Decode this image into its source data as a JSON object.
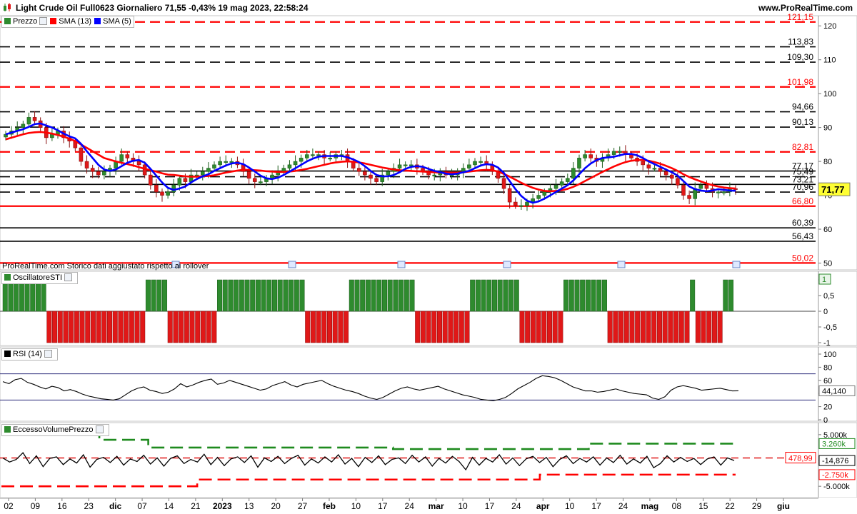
{
  "window": {
    "title": "Light Crude Oil Full0623 Giornaliero 71,55 -0,43% 19 mag 2023, 22:58:24",
    "site": "www.ProRealTime.com"
  },
  "footnote": "ProRealTime.com  Storico dati aggiustato rispetto ai rollover",
  "colors": {
    "bull": "#2e8b2e",
    "bear": "#e01818",
    "sma13": "#ff0000",
    "sma5": "#0000ff",
    "accent_label": "#ffff33"
  },
  "panels": {
    "price": {
      "legend": [
        {
          "label": "Prezzo",
          "icon": "candle-icon",
          "color": "#2e8b2e"
        },
        {
          "label": "SMA (13)",
          "color": "#ff0000"
        },
        {
          "label": "SMA (5)",
          "color": "#0000ff"
        }
      ],
      "current_price": "71,77"
    },
    "sti": {
      "legend": "OscillatoreSTI",
      "value_badge": "1"
    },
    "rsi": {
      "legend": "RSI (14)",
      "value": "44,140"
    },
    "volume": {
      "legend": "EccessoVolumePrezzo",
      "value_label": "478,99",
      "current": "-14,876",
      "upper_band": "3.260k",
      "lower_band": "-2.750k"
    }
  },
  "chart_data": [
    {
      "type": "candlestick",
      "title": "Light Crude Oil Full0623 Giornaliero",
      "x_labels": [
        "02",
        "09",
        "16",
        "23",
        "dic",
        "07",
        "14",
        "21",
        "2023",
        "13",
        "20",
        "27",
        "feb",
        "10",
        "17",
        "24",
        "mar",
        "10",
        "17",
        "24",
        "apr",
        "10",
        "17",
        "24",
        "mag",
        "08",
        "15",
        "22",
        "29",
        "giu"
      ],
      "y_ticks": [
        50,
        60,
        70,
        80,
        90,
        100,
        110,
        120
      ],
      "ylim": [
        48,
        123
      ],
      "levels": [
        {
          "value": 121.15,
          "label": "121,15",
          "color": "#ff0000",
          "style": "dashed"
        },
        {
          "value": 113.83,
          "label": "113,83",
          "color": "#000000",
          "style": "dashed"
        },
        {
          "value": 109.3,
          "label": "109,30",
          "color": "#000000",
          "style": "dashed"
        },
        {
          "value": 101.98,
          "label": "101,98",
          "color": "#ff0000",
          "style": "dashed"
        },
        {
          "value": 94.66,
          "label": "94,66",
          "color": "#000000",
          "style": "dashed"
        },
        {
          "value": 90.13,
          "label": "90,13",
          "color": "#000000",
          "style": "dashed"
        },
        {
          "value": 82.81,
          "label": "82,81",
          "color": "#ff0000",
          "style": "dashed"
        },
        {
          "value": 77.17,
          "label": "77,17",
          "color": "#000000",
          "style": "solid"
        },
        {
          "value": 75.49,
          "label": "75,49",
          "color": "#000000",
          "style": "dashed"
        },
        {
          "value": 73.21,
          "label": "73,21",
          "color": "#000000",
          "style": "solid"
        },
        {
          "value": 70.96,
          "label": "70,96",
          "color": "#000000",
          "style": "dashed"
        },
        {
          "value": 66.8,
          "label": "66,80",
          "color": "#ff0000",
          "style": "solid"
        },
        {
          "value": 60.39,
          "label": "60,39",
          "color": "#000000",
          "style": "solid"
        },
        {
          "value": 56.43,
          "label": "56,43",
          "color": "#000000",
          "style": "solid"
        },
        {
          "value": 50.02,
          "label": "50,02",
          "color": "#ff0000",
          "style": "solid"
        }
      ],
      "close": [
        88,
        89,
        90,
        91,
        93,
        92,
        90,
        87,
        88,
        89,
        87,
        86,
        84,
        80,
        78,
        77,
        76,
        77,
        78,
        80,
        82,
        81,
        80,
        79,
        76,
        73,
        71,
        70,
        71,
        73,
        75,
        74,
        76,
        76,
        77,
        78,
        79,
        80,
        80,
        80,
        79,
        77,
        75,
        74,
        74,
        75,
        76,
        77,
        78,
        79,
        80,
        81,
        82,
        82,
        82,
        81,
        81,
        82,
        82,
        80,
        78,
        77,
        76,
        75,
        74,
        76,
        77,
        78,
        79,
        79,
        79,
        78,
        77,
        76,
        76,
        77,
        76,
        76,
        77,
        78,
        79,
        80,
        80,
        79,
        77,
        75,
        72,
        68,
        67,
        67,
        68,
        69,
        70,
        71,
        72,
        73,
        74,
        75,
        78,
        81,
        82,
        81,
        80,
        81,
        82,
        83,
        83,
        82,
        81,
        80,
        79,
        78,
        78,
        77,
        76,
        75,
        73,
        70,
        69,
        72,
        73,
        72,
        71,
        71,
        71,
        72,
        71.77
      ],
      "sma13": [
        86.5,
        87,
        87.5,
        88,
        88.4,
        88.6,
        88.7,
        88.5,
        88.2,
        87.8,
        87.3,
        86.7,
        86,
        85,
        84,
        83,
        82,
        81,
        80.5,
        80,
        79.6,
        79.2,
        78.8,
        78.3,
        77.8,
        77.4,
        77,
        76.5,
        76.1,
        76,
        75.8,
        75.6,
        75.5,
        75.5,
        75.6,
        75.7,
        75.9,
        76.3,
        76.7,
        77,
        77.3,
        77.5,
        77.5,
        77.4,
        77.3,
        77.1,
        77,
        76.9,
        76.9,
        77,
        77.2,
        77.5,
        77.8,
        78.2,
        78.6,
        79,
        79.4,
        79.7,
        79.9,
        80,
        79.9,
        79.7,
        79.4,
        79,
        78.6,
        78.2,
        77.9,
        77.6,
        77.4,
        77.3,
        77.2,
        77.1,
        77,
        76.9,
        76.8,
        76.7,
        76.7,
        76.7,
        76.7,
        76.8,
        77,
        77.2,
        77.4,
        77.5,
        77.4,
        77,
        76.3,
        75.5,
        74.6,
        73.7,
        72.9,
        72.2,
        71.7,
        71.3,
        71.2,
        71.3,
        71.5,
        71.9,
        72.5,
        73.3,
        74.2,
        75.1,
        76,
        76.9,
        77.7,
        78.5,
        79.2,
        79.8,
        80.2,
        80.4,
        80.4,
        80.2,
        79.8,
        79.3,
        78.7,
        78,
        77.2,
        76.2,
        75.4,
        74.7,
        74.1,
        73.5,
        73,
        72.6,
        72.3,
        72.1,
        72
      ]
    },
    {
      "type": "bar",
      "title": "OscillatoreSTI",
      "ylim": [
        -1,
        1
      ],
      "y_ticks": [
        "1",
        "0,5",
        "0",
        "-0,5",
        "-1"
      ],
      "x_labels": [
        "02",
        "09",
        "16",
        "23",
        "dic",
        "07",
        "14",
        "21",
        "2023",
        "13",
        "20",
        "27",
        "feb",
        "10",
        "17",
        "24",
        "mar",
        "10",
        "17",
        "24",
        "apr",
        "10",
        "17",
        "24",
        "mag",
        "08",
        "15",
        "22",
        "29",
        "giu"
      ],
      "values": [
        1,
        1,
        1,
        1,
        1,
        1,
        1,
        1,
        -1,
        -1,
        -1,
        -1,
        -1,
        -1,
        -1,
        -1,
        -1,
        -1,
        -1,
        -1,
        -1,
        -1,
        -1,
        -1,
        -1,
        -1,
        1,
        1,
        1,
        1,
        -1,
        -1,
        -1,
        -1,
        -1,
        -1,
        -1,
        -1,
        -1,
        1,
        1,
        1,
        1,
        1,
        1,
        1,
        1,
        1,
        1,
        1,
        1,
        1,
        1,
        1,
        1,
        -1,
        -1,
        -1,
        -1,
        -1,
        -1,
        -1,
        -1,
        1,
        1,
        1,
        1,
        1,
        1,
        1,
        1,
        1,
        1,
        1,
        1,
        -1,
        -1,
        -1,
        -1,
        -1,
        -1,
        -1,
        -1,
        -1,
        -1,
        1,
        1,
        1,
        1,
        1,
        1,
        1,
        1,
        1,
        -1,
        -1,
        -1,
        -1,
        -1,
        -1,
        -1,
        -1,
        1,
        1,
        1,
        1,
        1,
        1,
        1,
        1,
        -1,
        -1,
        -1,
        -1,
        -1,
        -1,
        -1,
        -1,
        -1,
        -1,
        -1,
        -1,
        -1,
        -1,
        -1,
        1,
        -1,
        -1,
        -1,
        -1,
        -1,
        1,
        1
      ]
    },
    {
      "type": "line",
      "title": "RSI (14)",
      "ylim": [
        0,
        100
      ],
      "y_ticks": [
        100,
        80,
        60,
        40,
        20,
        0
      ],
      "levels": [
        70,
        30
      ],
      "values": [
        58,
        55,
        61,
        63,
        57,
        54,
        50,
        47,
        51,
        49,
        44,
        46,
        43,
        39,
        36,
        34,
        32,
        31,
        30,
        32,
        38,
        44,
        48,
        50,
        45,
        43,
        40,
        42,
        47,
        55,
        50,
        53,
        57,
        60,
        62,
        54,
        56,
        60,
        57,
        54,
        51,
        48,
        45,
        47,
        52,
        55,
        58,
        53,
        50,
        54,
        56,
        58,
        60,
        55,
        51,
        48,
        45,
        43,
        40,
        36,
        33,
        31,
        34,
        39,
        44,
        48,
        50,
        47,
        45,
        47,
        49,
        51,
        47,
        44,
        41,
        38,
        36,
        34,
        31,
        30,
        29,
        31,
        34,
        40,
        47,
        52,
        57,
        63,
        67,
        66,
        64,
        60,
        55,
        50,
        47,
        44,
        44,
        42,
        43,
        45,
        47,
        44,
        42,
        40,
        39,
        38,
        33,
        31,
        35,
        45,
        50,
        52,
        50,
        48,
        45,
        46,
        47,
        48,
        46,
        44,
        44.14
      ]
    },
    {
      "type": "line",
      "title": "EccessoVolumePrezzo",
      "ylim": [
        -6500,
        6500
      ],
      "y_ticks": [
        "5.000k",
        "0",
        "-5.000k"
      ],
      "values": [
        478.99,
        -300,
        200,
        1500,
        -600,
        900,
        -1200,
        400,
        700,
        -800,
        300,
        -500,
        1100,
        -1300,
        200,
        600,
        -400,
        800,
        -900,
        300,
        -200,
        1000,
        -700,
        500,
        -1100,
        400,
        900,
        -600,
        200,
        -300,
        1200,
        -800,
        600,
        -1000,
        300,
        700,
        -400,
        900,
        -1300,
        500,
        -200,
        800,
        -600,
        400,
        1000,
        -900,
        300,
        -500,
        700,
        -300,
        1100,
        -700,
        400,
        -1200,
        600,
        -400,
        900,
        -800,
        200,
        500,
        -600,
        1000,
        -300,
        700,
        -1100,
        400,
        -500,
        800,
        -200,
        -1800,
        600,
        -900,
        400,
        -300,
        1100,
        -700,
        500,
        -1000,
        300,
        800,
        -400,
        600,
        -1200,
        200,
        900,
        -600,
        400,
        -300,
        700,
        -900,
        500,
        -400,
        1000,
        -700,
        300,
        -500,
        800,
        -1400,
        -600,
        900,
        -300,
        600,
        -200,
        400,
        -800,
        300,
        700,
        -900,
        500,
        -14.876
      ],
      "upper_band": [
        5800,
        5800,
        4000,
        2500,
        2500,
        2500,
        2500,
        2500,
        2200,
        2200,
        2200,
        2200,
        3260,
        3260,
        3260
      ],
      "lower_band": [
        -5000,
        -5000,
        -5000,
        -5000,
        -3700,
        -3700,
        -3700,
        -3700,
        -3700,
        -3700,
        -3700,
        -2750,
        -2750,
        -2750,
        -2750
      ]
    }
  ]
}
